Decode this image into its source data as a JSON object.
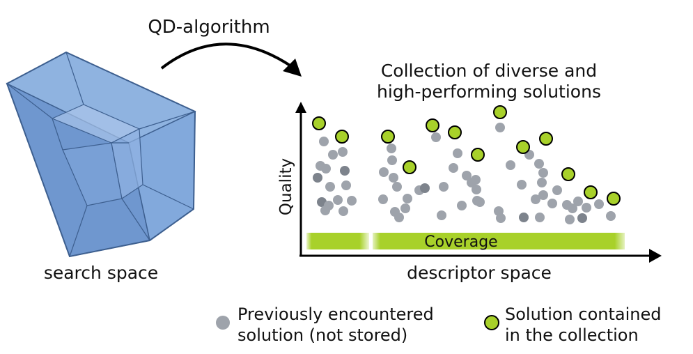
{
  "algorithm_label": "QD-algorithm",
  "search_space_label": "search space",
  "collection_title_line1": "Collection of diverse and",
  "collection_title_line2": "high-performing solutions",
  "y_axis_label": "Quality",
  "x_axis_label": "descriptor space",
  "coverage_label": "Coverage",
  "legend": {
    "previous_line1": "Previously encountered",
    "previous_line2": "solution (not stored)",
    "collection_line1": "Solution contained",
    "collection_line2": "in the collection"
  },
  "colors": {
    "cube_fill": "#7aa3d8",
    "cube_edge": "#3d5f8f",
    "previous_solution": "#9ea3ab",
    "collected_solution": "#a8d12a",
    "coverage_bar": "#a8d12a",
    "axis": "#000000"
  }
}
